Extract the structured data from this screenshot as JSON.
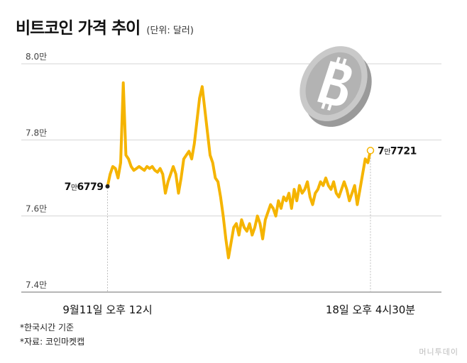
{
  "header": {
    "title": "비트코인 가격 추이",
    "unit": "(단위: 달러)"
  },
  "notes": {
    "timezone": "*한국시간 기준",
    "source": "*자료: 코인마켓캡"
  },
  "credit": "머니투데이",
  "coin_icon": "bitcoin-coin-icon",
  "colors": {
    "line": "#f5b400",
    "grid": "#d5d5d5",
    "coin": "#c9c9c9"
  },
  "chart_data": {
    "type": "line",
    "title": "비트코인 가격 추이",
    "unit": "달러",
    "ylim": [
      74000,
      80000
    ],
    "y_ticks": [
      {
        "value": 74000,
        "label": "7.4만"
      },
      {
        "value": 76000,
        "label": "7.6만"
      },
      {
        "value": 78000,
        "label": "7.8만"
      },
      {
        "value": 80000,
        "label": "8.0만"
      }
    ],
    "x_ticks": [
      {
        "x": 0,
        "label": "9월11일 오후 12시"
      },
      {
        "x": 100,
        "label": "18일 오후 4시30분"
      }
    ],
    "xlim": [
      -22,
      127
    ],
    "series": [
      {
        "x": [
          0,
          1,
          2,
          3,
          4,
          5,
          6,
          7,
          8,
          9,
          10,
          11,
          12,
          13,
          14,
          15,
          16,
          17,
          18,
          19,
          20,
          21,
          22,
          23,
          24,
          25,
          26,
          27,
          28,
          29,
          30,
          31,
          32,
          33,
          34,
          35,
          36,
          37,
          38,
          39,
          40,
          41,
          42,
          43,
          44,
          45,
          46,
          47,
          48,
          49,
          50,
          51,
          52,
          53,
          54,
          55,
          56,
          57,
          58,
          59,
          60,
          61,
          62,
          63,
          64,
          65,
          66,
          67,
          68,
          69,
          70,
          71,
          72,
          73,
          74,
          75,
          76,
          77,
          78,
          79,
          80,
          81,
          82,
          83,
          84,
          85,
          86,
          87,
          88,
          89,
          90,
          91,
          92,
          93,
          94,
          95,
          96,
          97,
          98,
          99,
          100
        ],
        "values": [
          76779,
          77100,
          77300,
          77250,
          77000,
          77400,
          79500,
          77600,
          77500,
          77300,
          77200,
          77250,
          77300,
          77250,
          77200,
          77300,
          77250,
          77300,
          77200,
          77150,
          77250,
          77100,
          76600,
          76900,
          77100,
          77300,
          77100,
          76600,
          77000,
          77500,
          77600,
          77700,
          77500,
          77900,
          78500,
          79100,
          79400,
          78800,
          78200,
          77600,
          77400,
          77000,
          76900,
          76500,
          76000,
          75400,
          74900,
          75300,
          75700,
          75800,
          75500,
          75900,
          75700,
          75600,
          75800,
          75500,
          75700,
          76000,
          75800,
          75400,
          75900,
          76100,
          76300,
          76200,
          76000,
          76400,
          76200,
          76500,
          76400,
          76600,
          76200,
          76700,
          76400,
          76800,
          76600,
          76700,
          76900,
          76500,
          76300,
          76600,
          76700,
          76900,
          76800,
          77000,
          76800,
          76700,
          76900,
          76600,
          76500,
          76700,
          76900,
          76700,
          76400,
          76600,
          76800,
          76300,
          76700,
          77100,
          77500,
          77400,
          77721
        ]
      }
    ],
    "annotations": [
      {
        "x": 0,
        "value": 76779,
        "label": "7만6779",
        "style": "filled"
      },
      {
        "x": 100,
        "value": 77721,
        "label": "7만7721",
        "style": "hollow"
      }
    ]
  }
}
